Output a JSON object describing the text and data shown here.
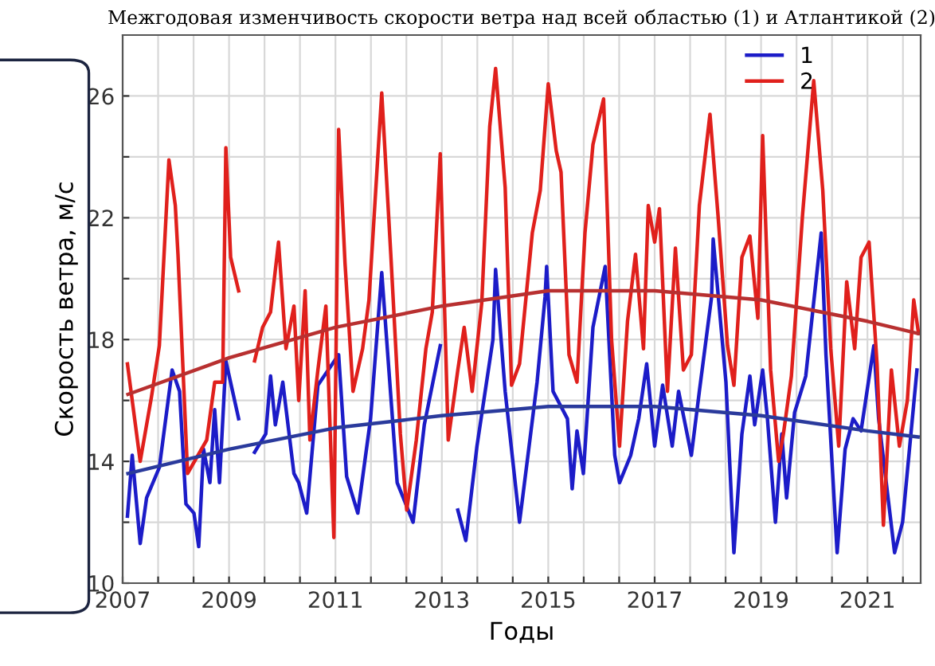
{
  "chart_data": {
    "type": "line",
    "title": "Межгодовая изменчивость скорости ветра над всей областью (1) и Атлантикой (2)",
    "xlabel": "Годы",
    "ylabel": "Скорость ветра, м/с",
    "xlim": [
      2007,
      2022
    ],
    "xticks": [
      2007,
      {
        "value": 2007.667,
        "label": null
      },
      {
        "value": 2008.333,
        "label": null
      },
      {
        "value": 2009,
        "label": "2009"
      },
      {
        "value": 2009.667,
        "label": null
      },
      {
        "value": 2010.333,
        "label": null
      },
      2011,
      {
        "value": 2011.667,
        "label": null
      },
      {
        "value": 2012.333,
        "label": null
      },
      2013,
      {
        "value": 2013.667,
        "label": null
      },
      {
        "value": 2014.333,
        "label": null
      },
      2015,
      {
        "value": 2015.667,
        "label": null
      },
      {
        "value": 2016.333,
        "label": null
      },
      2017,
      {
        "value": 2017.667,
        "label": null
      },
      {
        "value": 2018.333,
        "label": null
      },
      2019,
      {
        "value": 2019.667,
        "label": null
      },
      {
        "value": 2020.333,
        "label": null
      },
      2021,
      {
        "value": 2021.667,
        "label": null
      }
    ],
    "ylim": [
      10,
      28
    ],
    "yticks": [
      10,
      {
        "value": 12,
        "label": null
      },
      14,
      {
        "value": 16,
        "label": null
      },
      18,
      {
        "value": 20,
        "label": null
      },
      22,
      {
        "value": 24,
        "label": null
      },
      26
    ],
    "grid": true,
    "legend": "top right",
    "line_style": "solid",
    "marker": "none",
    "series": [
      {
        "name": "1",
        "color": "#1c1cc8",
        "x": [
          2007.09,
          2007.18,
          2007.33,
          2007.45,
          2007.69,
          2007.93,
          2008.07,
          2008.19,
          2008.34,
          2008.43,
          2008.52,
          2008.64,
          2008.73,
          2008.82,
          2008.94,
          2009.18,
          2009.3,
          2009.48,
          2009.69,
          2009.78,
          2009.87,
          2010.01,
          2010.22,
          2010.31,
          2010.46,
          2010.67,
          2011.06,
          2011.21,
          2011.42,
          2011.66,
          2011.87,
          2012.16,
          2012.46,
          2012.67,
          2012.97,
          2013.12,
          2013.2,
          2013.3,
          2013.45,
          2013.66,
          2013.96,
          2014.01,
          2014.19,
          2014.46,
          2014.64,
          2014.79,
          2014.94,
          2014.97,
          2015.09,
          2015.36,
          2015.45,
          2015.54,
          2015.66,
          2015.84,
          2016.07,
          2016.25,
          2016.34,
          2016.55,
          2016.7,
          2016.85,
          2017.0,
          2017.15,
          2017.33,
          2017.45,
          2017.69,
          2017.84,
          2018.07,
          2018.1,
          2018.34,
          2018.49,
          2018.64,
          2018.79,
          2018.88,
          2019.03,
          2019.12,
          2019.27,
          2019.39,
          2019.48,
          2019.63,
          2019.84,
          2020.13,
          2020.22,
          2020.43,
          2020.58,
          2020.73,
          2020.88,
          2021.12,
          2021.21,
          2021.51,
          2021.66,
          2021.93
        ],
        "values": [
          12.2,
          14.2,
          11.3,
          12.8,
          13.8,
          17.0,
          16.3,
          12.6,
          12.3,
          11.2,
          14.4,
          13.3,
          15.7,
          13.3,
          17.3,
          15.4,
          null,
          14.3,
          14.9,
          16.8,
          15.2,
          16.6,
          13.6,
          13.3,
          12.3,
          16.5,
          17.5,
          13.5,
          12.3,
          15.4,
          20.2,
          13.3,
          12.0,
          15.2,
          17.8,
          null,
          null,
          12.4,
          11.4,
          14.5,
          18.0,
          20.3,
          16.3,
          12.0,
          14.5,
          16.6,
          19.4,
          20.4,
          16.3,
          15.4,
          13.1,
          15.0,
          13.6,
          18.4,
          20.4,
          14.2,
          13.3,
          14.2,
          15.4,
          17.2,
          14.5,
          16.5,
          14.5,
          16.3,
          14.2,
          16.3,
          19.4,
          21.3,
          16.6,
          11.0,
          14.9,
          16.8,
          15.2,
          17.0,
          15.4,
          12.0,
          14.9,
          12.8,
          15.6,
          16.8,
          21.5,
          17.5,
          11.0,
          14.4,
          15.4,
          15.0,
          17.8,
          15.4,
          11.0,
          12.0,
          17.0
        ]
      },
      {
        "name": "2",
        "color": "#e0201c",
        "x": [
          2007.09,
          2007.33,
          2007.54,
          2007.69,
          2007.87,
          2007.99,
          2008.04,
          2008.22,
          2008.58,
          2008.73,
          2008.88,
          2008.94,
          2009.03,
          2009.18,
          2009.3,
          2009.48,
          2009.63,
          2009.78,
          2009.93,
          2010.07,
          2010.22,
          2010.31,
          2010.43,
          2010.52,
          2010.67,
          2010.82,
          2010.97,
          2011.06,
          2011.18,
          2011.33,
          2011.51,
          2011.63,
          2011.87,
          2012.04,
          2012.22,
          2012.34,
          2012.52,
          2012.7,
          2012.82,
          2012.97,
          2013.12,
          2013.3,
          2013.42,
          2013.57,
          2013.75,
          2013.9,
          2014.01,
          2014.19,
          2014.31,
          2014.46,
          2014.7,
          2014.85,
          2015.0,
          2015.15,
          2015.24,
          2015.39,
          2015.54,
          2015.69,
          2015.84,
          2016.04,
          2016.19,
          2016.34,
          2016.49,
          2016.64,
          2016.79,
          2016.88,
          2017.0,
          2017.09,
          2017.24,
          2017.39,
          2017.54,
          2017.69,
          2017.84,
          2018.04,
          2018.19,
          2018.37,
          2018.49,
          2018.64,
          2018.79,
          2018.94,
          2019.03,
          2019.18,
          2019.33,
          2019.42,
          2019.57,
          2019.78,
          2019.99,
          2020.16,
          2020.31,
          2020.46,
          2020.61,
          2020.76,
          2020.88,
          2021.03,
          2021.18,
          2021.3,
          2021.45,
          2021.6,
          2021.75,
          2021.87,
          2021.96
        ],
        "values": [
          17.2,
          14.0,
          16.1,
          17.8,
          23.9,
          22.4,
          20.8,
          13.6,
          14.7,
          16.6,
          16.6,
          24.3,
          20.7,
          19.6,
          null,
          17.3,
          18.4,
          18.9,
          21.2,
          17.7,
          19.1,
          16.0,
          19.6,
          14.7,
          17.0,
          19.1,
          11.5,
          24.9,
          20.5,
          16.3,
          17.7,
          19.3,
          26.1,
          20.8,
          14.9,
          12.4,
          14.7,
          17.7,
          18.9,
          24.1,
          14.7,
          17.0,
          18.4,
          16.3,
          19.2,
          25.0,
          26.9,
          23.0,
          16.5,
          17.2,
          21.5,
          22.9,
          26.4,
          24.2,
          23.5,
          17.5,
          16.6,
          21.5,
          24.4,
          25.9,
          18.0,
          14.5,
          18.6,
          20.8,
          17.7,
          22.4,
          21.2,
          22.3,
          16.3,
          21.0,
          17.0,
          17.5,
          22.4,
          25.4,
          22.1,
          17.8,
          16.5,
          20.7,
          21.4,
          18.7,
          24.7,
          17.0,
          14.0,
          14.9,
          16.8,
          22.1,
          26.5,
          22.9,
          17.7,
          14.5,
          19.9,
          17.7,
          20.7,
          21.2,
          17.2,
          11.9,
          17.0,
          14.5,
          16.0,
          19.3,
          18.2
        ]
      },
      {
        "color": "#2a3a9c",
        "x": [
          2007.1,
          2009,
          2011,
          2013,
          2015,
          2017,
          2019,
          2021,
          2021.95
        ],
        "values": [
          13.6,
          14.4,
          15.1,
          15.5,
          15.8,
          15.8,
          15.5,
          15.0,
          14.8
        ]
      },
      {
        "color": "#b83030",
        "x": [
          2007.1,
          2009,
          2011,
          2013,
          2015,
          2017,
          2019,
          2021,
          2021.95
        ],
        "values": [
          16.2,
          17.4,
          18.4,
          19.1,
          19.6,
          19.6,
          19.3,
          18.6,
          18.2
        ]
      }
    ]
  }
}
